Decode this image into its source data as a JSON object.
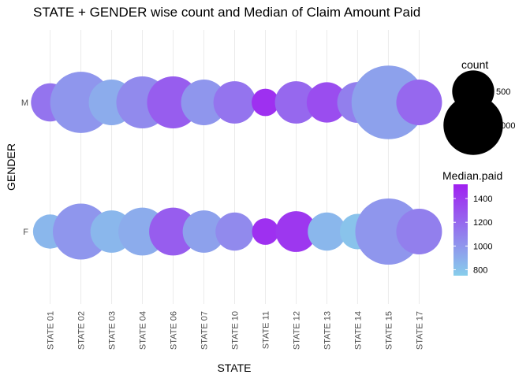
{
  "chart_data": {
    "type": "scatter",
    "title": "STATE + GENDER wise count and Median of Claim Amount Paid",
    "xlabel": "STATE",
    "ylabel": "GENDER",
    "categories": [
      "STATE 01",
      "STATE 02",
      "STATE 03",
      "STATE 04",
      "STATE 06",
      "STATE 07",
      "STATE 10",
      "STATE 11",
      "STATE 12",
      "STATE 13",
      "STATE 14",
      "STATE 15",
      "STATE 17"
    ],
    "y_categories": [
      "F",
      "M"
    ],
    "grid": true,
    "series": [
      {
        "gender": "M",
        "count": [
          350,
          900,
          500,
          650,
          650,
          500,
          430,
          180,
          430,
          390,
          400,
          1300,
          500
        ],
        "median_paid": [
          1150,
          1000,
          900,
          1050,
          1250,
          1000,
          1150,
          1450,
          1200,
          1320,
          1100,
          950,
          1200
        ]
      },
      {
        "gender": "F",
        "count": [
          280,
          750,
          430,
          550,
          550,
          430,
          350,
          170,
          400,
          350,
          300,
          1050,
          500
        ],
        "median_paid": [
          850,
          1000,
          850,
          900,
          1250,
          950,
          1050,
          1450,
          1420,
          850,
          800,
          1000,
          1100
        ]
      }
    ],
    "legend": {
      "position": "right",
      "size_title": "count",
      "size_breaks": [
        500,
        1000
      ],
      "color_title": "Median.paid",
      "color_breaks": [
        800,
        1000,
        1200,
        1400
      ],
      "color_range": [
        750,
        1520
      ],
      "color_low": "#87CEEB",
      "color_high": "#A020F0"
    }
  }
}
